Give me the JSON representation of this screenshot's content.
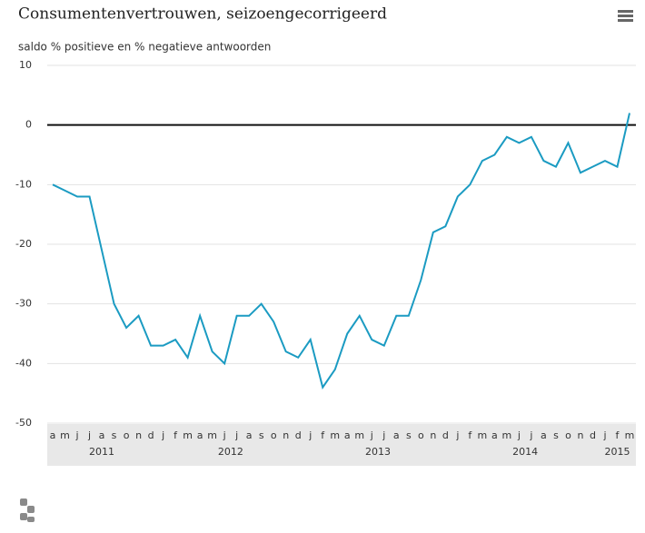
{
  "chart_data": {
    "type": "line",
    "title": "Consumentenvertrouwen, seizoengecorrigeerd",
    "subtitle": "saldo % positieve en % negatieve antwoorden",
    "groups": [
      {
        "name": "2011",
        "categories": [
          "a",
          "m",
          "j",
          "j",
          "a",
          "s",
          "o",
          "n",
          "d"
        ]
      },
      {
        "name": "2012",
        "categories": [
          "j",
          "f",
          "m",
          "a",
          "m",
          "j",
          "j",
          "a",
          "s",
          "o",
          "n",
          "d"
        ]
      },
      {
        "name": "2013",
        "categories": [
          "j",
          "f",
          "m",
          "a",
          "m",
          "j",
          "j",
          "a",
          "s",
          "o",
          "n",
          "d"
        ]
      },
      {
        "name": "2014",
        "categories": [
          "j",
          "f",
          "m",
          "a",
          "m",
          "j",
          "j",
          "a",
          "s",
          "o",
          "n",
          "d"
        ]
      },
      {
        "name": "2015",
        "categories": [
          "j",
          "f",
          "m"
        ]
      }
    ],
    "series": [
      {
        "color": "#1b9bc2",
        "values": [
          -10,
          -11,
          -12,
          -12,
          -21,
          -30,
          -34,
          -32,
          -37,
          -37,
          -36,
          -39,
          -32,
          -38,
          -40,
          -32,
          -32,
          -30,
          -33,
          -38,
          -39,
          -36,
          -44,
          -41,
          -35,
          -32,
          -36,
          -37,
          -32,
          -32,
          -26,
          -18,
          -17,
          -12,
          -10,
          -6,
          -5,
          -2,
          -3,
          -2,
          -6,
          -7,
          -3,
          -8,
          -7,
          -6,
          -7,
          2
        ]
      }
    ],
    "ylim": [
      -50,
      10
    ],
    "yticks": [
      10,
      0,
      -10,
      -20,
      -30,
      -40,
      -50
    ],
    "grid": true
  }
}
